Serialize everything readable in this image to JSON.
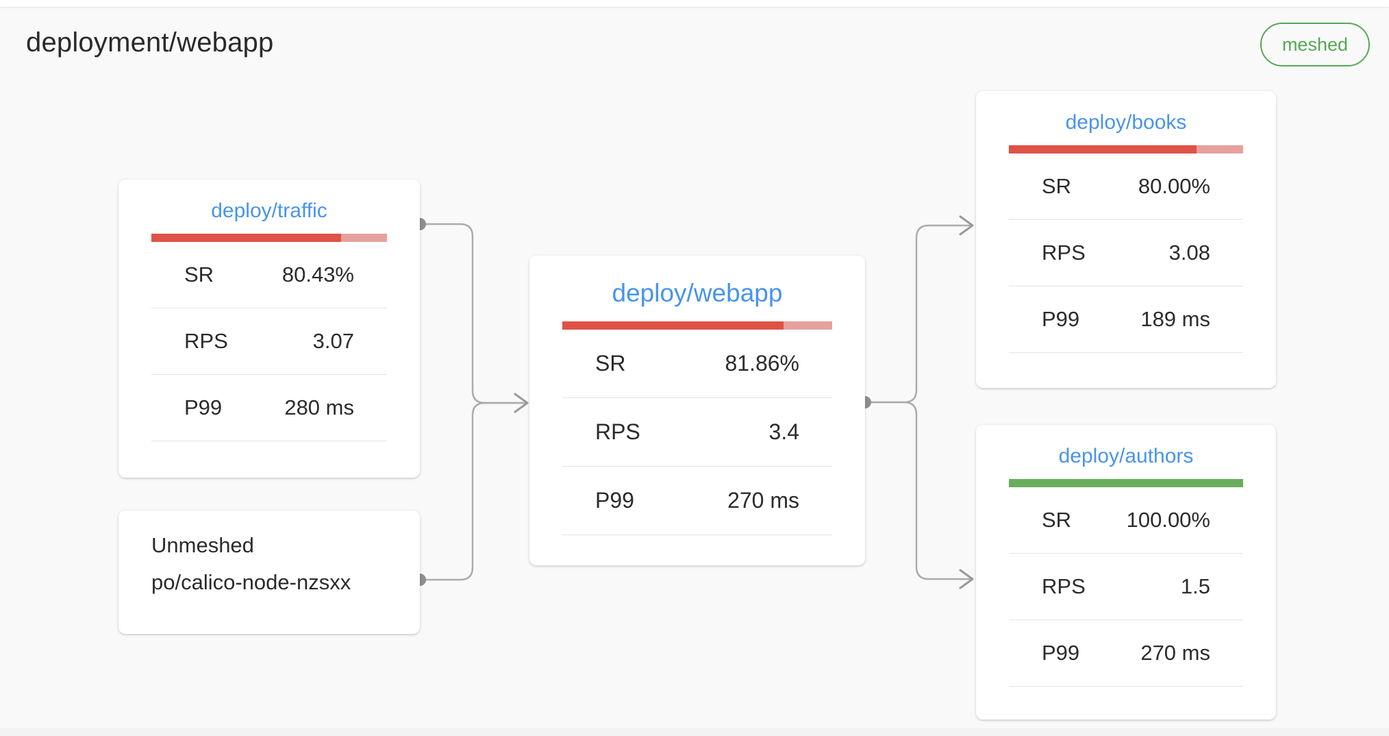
{
  "header": {
    "title": "deployment/webapp",
    "badge_label": "meshed"
  },
  "colors": {
    "node_title_blue": "#4894ea",
    "bar_red": "#df5245",
    "bar_red_remainder": "#e5a19e",
    "bar_green": "#68ae5d",
    "badge_green": "#55a755",
    "edge_gray": "#ababab"
  },
  "nodes": {
    "traffic": {
      "title": "deploy/traffic",
      "success_rate_pct": 80.43,
      "metrics": {
        "sr": {
          "label": "SR",
          "value": "80.43%"
        },
        "rps": {
          "label": "RPS",
          "value": "3.07"
        },
        "p99": {
          "label": "P99",
          "value": "280 ms"
        }
      }
    },
    "unmeshed": {
      "title": "Unmeshed",
      "pod": "po/calico-node-nzsxx"
    },
    "webapp": {
      "title": "deploy/webapp",
      "success_rate_pct": 81.86,
      "metrics": {
        "sr": {
          "label": "SR",
          "value": "81.86%"
        },
        "rps": {
          "label": "RPS",
          "value": "3.4"
        },
        "p99": {
          "label": "P99",
          "value": "270 ms"
        }
      }
    },
    "books": {
      "title": "deploy/books",
      "success_rate_pct": 80.0,
      "metrics": {
        "sr": {
          "label": "SR",
          "value": "80.00%"
        },
        "rps": {
          "label": "RPS",
          "value": "3.08"
        },
        "p99": {
          "label": "P99",
          "value": "189 ms"
        }
      }
    },
    "authors": {
      "title": "deploy/authors",
      "success_rate_pct": 100.0,
      "metrics": {
        "sr": {
          "label": "SR",
          "value": "100.00%"
        },
        "rps": {
          "label": "RPS",
          "value": "1.5"
        },
        "p99": {
          "label": "P99",
          "value": "270 ms"
        }
      }
    }
  },
  "edges": [
    {
      "from": "deploy/traffic",
      "to": "deploy/webapp"
    },
    {
      "from": "po/calico-node-nzsxx",
      "to": "deploy/webapp"
    },
    {
      "from": "deploy/webapp",
      "to": "deploy/books"
    },
    {
      "from": "deploy/webapp",
      "to": "deploy/authors"
    }
  ]
}
